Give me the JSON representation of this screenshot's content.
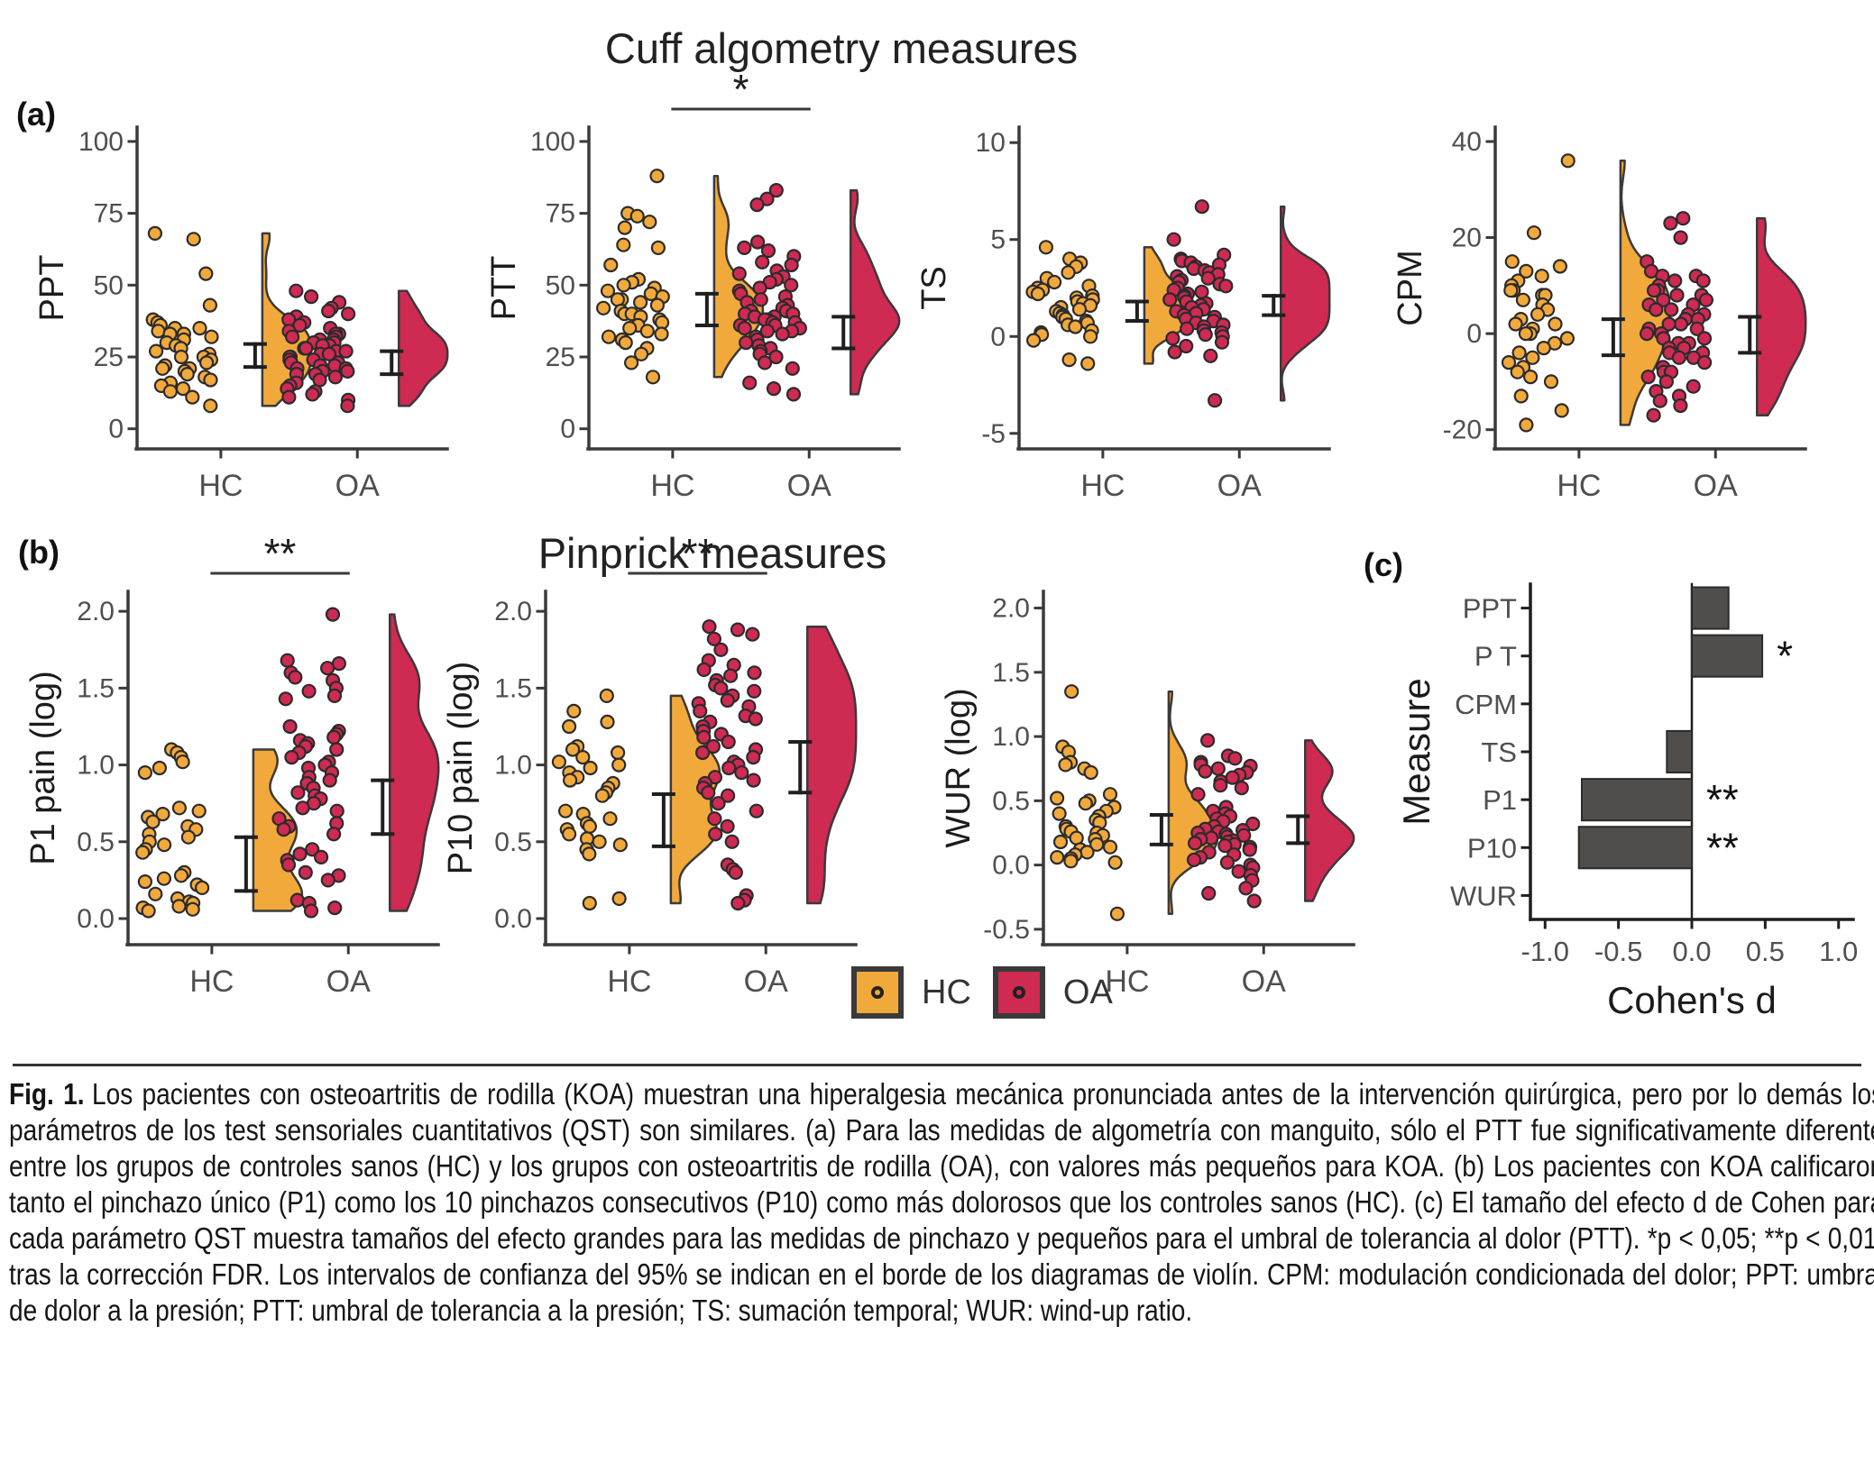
{
  "figure": {
    "titles": {
      "row_a": "Cuff algometry measures",
      "row_b": "Pinprick measures"
    },
    "panel_labels": {
      "a": "(a)",
      "b": "(b)",
      "c": "(c)"
    },
    "legend": [
      {
        "label": "HC",
        "color": "#F2A93B"
      },
      {
        "label": "OA",
        "color": "#CE2A52"
      }
    ]
  },
  "colors": {
    "hc": "#F2A93B",
    "oa": "#CE2A52",
    "bar": "#514D4B",
    "axis": "#3a3a3a",
    "tick_text": "#4f4f4f",
    "label_text": "#1c1c1c"
  },
  "chart_data": [
    {
      "type": "raincloud",
      "id": "ppt",
      "ylabel": "PPT",
      "categories": [
        "HC",
        "OA"
      ],
      "ylim": [
        -7,
        105
      ],
      "yticks": [
        0,
        25,
        50,
        75,
        100
      ],
      "ytick_labels": [
        "0",
        "25",
        "50",
        "75",
        "100"
      ],
      "sig": "",
      "groups": [
        {
          "name": "HC",
          "color": "#F2A93B",
          "ci": [
            21.5,
            29.5
          ],
          "points": [
            68,
            66,
            54,
            43,
            38,
            37,
            36,
            35,
            35,
            34,
            33,
            33,
            32,
            31,
            30,
            29,
            28,
            27,
            26,
            25,
            25,
            24,
            23,
            22,
            21,
            21,
            20,
            19,
            18,
            17,
            16,
            15,
            14,
            13,
            11,
            8
          ]
        },
        {
          "name": "OA",
          "color": "#CE2A52",
          "ci": [
            19,
            27
          ],
          "points": [
            48,
            46,
            44,
            42,
            41,
            40,
            39,
            38,
            37,
            36,
            35,
            34,
            33,
            33,
            32,
            32,
            31,
            31,
            30,
            30,
            29,
            29,
            28,
            28,
            27,
            27,
            26,
            26,
            25,
            25,
            24,
            24,
            23,
            23,
            22,
            22,
            21,
            21,
            20,
            20,
            19,
            19,
            18,
            17,
            16,
            15,
            14,
            13,
            12,
            11,
            10,
            8
          ]
        }
      ]
    },
    {
      "type": "raincloud",
      "id": "ptt",
      "ylabel": "PTT",
      "categories": [
        "HC",
        "OA"
      ],
      "ylim": [
        -7,
        105
      ],
      "yticks": [
        0,
        25,
        50,
        75,
        100
      ],
      "ytick_labels": [
        "0",
        "25",
        "50",
        "75",
        "100"
      ],
      "sig": "*",
      "groups": [
        {
          "name": "HC",
          "color": "#F2A93B",
          "ci": [
            36,
            47
          ],
          "points": [
            88,
            75,
            74,
            72,
            70,
            64,
            63,
            57,
            52,
            51,
            50,
            49,
            48,
            47,
            46,
            45,
            45,
            44,
            43,
            42,
            41,
            40,
            40,
            39,
            38,
            37,
            36,
            35,
            34,
            33,
            32,
            31,
            30,
            28,
            26,
            23,
            18
          ]
        },
        {
          "name": "OA",
          "color": "#CE2A52",
          "ci": [
            28,
            39
          ],
          "points": [
            83,
            80,
            78,
            65,
            63,
            62,
            60,
            58,
            57,
            55,
            54,
            53,
            52,
            51,
            50,
            49,
            48,
            47,
            46,
            45,
            44,
            43,
            42,
            41,
            41,
            40,
            40,
            39,
            39,
            38,
            38,
            37,
            37,
            36,
            36,
            35,
            35,
            34,
            34,
            33,
            32,
            31,
            30,
            29,
            28,
            27,
            26,
            25,
            23,
            21,
            16,
            14,
            12
          ]
        }
      ]
    },
    {
      "type": "raincloud",
      "id": "ts",
      "ylabel": "TS",
      "categories": [
        "HC",
        "OA"
      ],
      "ylim": [
        -5.8,
        10.8
      ],
      "yticks": [
        -5,
        0,
        5,
        10
      ],
      "ytick_labels": [
        "-5",
        "0",
        "5",
        "10"
      ],
      "sig": "",
      "groups": [
        {
          "name": "HC",
          "color": "#F2A93B",
          "ci": [
            0.8,
            1.8
          ],
          "points": [
            4.6,
            4.0,
            3.8,
            3.6,
            3.3,
            3.0,
            2.8,
            2.6,
            2.5,
            2.4,
            2.3,
            2.2,
            2.1,
            2.0,
            1.9,
            1.8,
            1.7,
            1.6,
            1.5,
            1.4,
            1.3,
            1.2,
            1.1,
            1.0,
            0.9,
            0.8,
            0.7,
            0.6,
            0.5,
            0.3,
            0.2,
            0.1,
            0.0,
            -0.2,
            -1.2,
            -1.4
          ]
        },
        {
          "name": "OA",
          "color": "#CE2A52",
          "ci": [
            1.1,
            2.1
          ],
          "points": [
            6.7,
            5.0,
            4.2,
            4.0,
            3.9,
            3.8,
            3.7,
            3.6,
            3.5,
            3.4,
            3.3,
            3.2,
            3.1,
            3.0,
            2.9,
            2.8,
            2.7,
            2.6,
            2.5,
            2.4,
            2.3,
            2.2,
            2.1,
            2.0,
            1.9,
            1.8,
            1.7,
            1.6,
            1.5,
            1.4,
            1.3,
            1.2,
            1.1,
            1.0,
            0.9,
            0.8,
            0.7,
            0.6,
            0.5,
            0.4,
            0.3,
            0.2,
            0.1,
            0.0,
            -0.1,
            -0.3,
            -0.5,
            -0.8,
            -1.0,
            -3.3
          ]
        }
      ]
    },
    {
      "type": "raincloud",
      "id": "cpm",
      "ylabel": "CPM",
      "categories": [
        "HC",
        "OA"
      ],
      "ylim": [
        -24,
        43
      ],
      "yticks": [
        -20,
        0,
        20,
        40
      ],
      "ytick_labels": [
        "-20",
        "0",
        "20",
        "40"
      ],
      "sig": "",
      "groups": [
        {
          "name": "HC",
          "color": "#F2A93B",
          "ci": [
            -4.5,
            3
          ],
          "points": [
            36,
            21,
            15,
            14,
            13,
            12,
            11,
            10,
            9,
            9,
            8,
            8,
            7,
            6,
            5,
            4,
            3,
            2,
            2,
            1,
            0,
            0,
            -1,
            -2,
            -3,
            -4,
            -5,
            -6,
            -7,
            -8,
            -9,
            -10,
            -13,
            -16,
            -19
          ]
        },
        {
          "name": "OA",
          "color": "#CE2A52",
          "ci": [
            -4,
            3.5
          ],
          "points": [
            24,
            23,
            20,
            15,
            13,
            12,
            12,
            11,
            11,
            10,
            9,
            9,
            8,
            8,
            7,
            7,
            6,
            6,
            5,
            5,
            4,
            4,
            3,
            3,
            2,
            2,
            1,
            1,
            0,
            0,
            -1,
            -1,
            -2,
            -2,
            -3,
            -3,
            -4,
            -4,
            -5,
            -5,
            -6,
            -7,
            -8,
            -8,
            -9,
            -10,
            -11,
            -12,
            -13,
            -14,
            -15,
            -17
          ]
        }
      ]
    },
    {
      "type": "raincloud",
      "id": "p1",
      "ylabel": "P1 pain (log)",
      "categories": [
        "HC",
        "OA"
      ],
      "ylim": [
        -0.17,
        2.13
      ],
      "yticks": [
        0,
        0.5,
        1,
        1.5,
        2
      ],
      "ytick_labels": [
        "0.0",
        "0.5",
        "1.0",
        "1.5",
        "2.0"
      ],
      "sig": "**",
      "groups": [
        {
          "name": "HC",
          "color": "#F2A93B",
          "ci": [
            0.18,
            0.53
          ],
          "points": [
            1.1,
            1.08,
            1.05,
            1.02,
            0.98,
            0.95,
            0.72,
            0.7,
            0.68,
            0.66,
            0.63,
            0.6,
            0.58,
            0.55,
            0.53,
            0.5,
            0.48,
            0.45,
            0.43,
            0.3,
            0.28,
            0.26,
            0.24,
            0.22,
            0.2,
            0.16,
            0.13,
            0.11,
            0.1,
            0.08,
            0.07,
            0.06,
            0.05
          ]
        },
        {
          "name": "OA",
          "color": "#CE2A52",
          "ci": [
            0.55,
            0.9
          ],
          "points": [
            1.98,
            1.68,
            1.66,
            1.63,
            1.6,
            1.57,
            1.55,
            1.5,
            1.48,
            1.45,
            1.43,
            1.25,
            1.22,
            1.2,
            1.18,
            1.16,
            1.14,
            1.12,
            1.1,
            1.08,
            1.05,
            1.02,
            1.0,
            0.98,
            0.95,
            0.92,
            0.9,
            0.88,
            0.85,
            0.82,
            0.8,
            0.78,
            0.75,
            0.72,
            0.7,
            0.65,
            0.62,
            0.6,
            0.58,
            0.55,
            0.45,
            0.42,
            0.4,
            0.38,
            0.35,
            0.3,
            0.28,
            0.25,
            0.12,
            0.1,
            0.07,
            0.05
          ]
        }
      ]
    },
    {
      "type": "raincloud",
      "id": "p10",
      "ylabel": "P10 pain (log)",
      "categories": [
        "HC",
        "OA"
      ],
      "ylim": [
        -0.17,
        2.13
      ],
      "yticks": [
        0,
        0.5,
        1,
        1.5,
        2
      ],
      "ytick_labels": [
        "0.0",
        "0.5",
        "1.0",
        "1.5",
        "2.0"
      ],
      "sig": "**",
      "groups": [
        {
          "name": "HC",
          "color": "#F2A93B",
          "ci": [
            0.47,
            0.81
          ],
          "points": [
            1.45,
            1.35,
            1.28,
            1.25,
            1.12,
            1.1,
            1.08,
            1.05,
            1.02,
            1.0,
            0.98,
            0.95,
            0.92,
            0.9,
            0.88,
            0.85,
            0.82,
            0.8,
            0.7,
            0.68,
            0.65,
            0.62,
            0.6,
            0.58,
            0.55,
            0.52,
            0.5,
            0.48,
            0.45,
            0.42,
            0.13,
            0.1
          ]
        },
        {
          "name": "OA",
          "color": "#CE2A52",
          "ci": [
            0.82,
            1.15
          ],
          "points": [
            1.9,
            1.88,
            1.85,
            1.82,
            1.75,
            1.68,
            1.65,
            1.62,
            1.6,
            1.58,
            1.55,
            1.52,
            1.5,
            1.48,
            1.45,
            1.42,
            1.4,
            1.38,
            1.35,
            1.32,
            1.3,
            1.28,
            1.25,
            1.22,
            1.2,
            1.18,
            1.15,
            1.12,
            1.1,
            1.08,
            1.05,
            1.02,
            1.0,
            0.98,
            0.95,
            0.92,
            0.9,
            0.88,
            0.85,
            0.82,
            0.8,
            0.75,
            0.7,
            0.65,
            0.6,
            0.55,
            0.5,
            0.35,
            0.32,
            0.3,
            0.15,
            0.12,
            0.1
          ]
        }
      ]
    },
    {
      "type": "raincloud",
      "id": "wur",
      "ylabel": "WUR (log)",
      "categories": [
        "HC",
        "OA"
      ],
      "ylim": [
        -0.62,
        2.13
      ],
      "yticks": [
        -0.5,
        0,
        0.5,
        1,
        1.5,
        2
      ],
      "ytick_labels": [
        "-0.5",
        "0.0",
        "0.5",
        "1.0",
        "1.5",
        "2.0"
      ],
      "sig": "",
      "groups": [
        {
          "name": "HC",
          "color": "#F2A93B",
          "ci": [
            0.16,
            0.39
          ],
          "points": [
            1.35,
            0.92,
            0.88,
            0.8,
            0.78,
            0.75,
            0.72,
            0.55,
            0.52,
            0.5,
            0.48,
            0.45,
            0.42,
            0.4,
            0.38,
            0.35,
            0.33,
            0.3,
            0.28,
            0.26,
            0.25,
            0.23,
            0.21,
            0.2,
            0.18,
            0.16,
            0.14,
            0.12,
            0.1,
            0.08,
            0.06,
            0.05,
            0.03,
            0.02,
            -0.38
          ]
        },
        {
          "name": "OA",
          "color": "#CE2A52",
          "ci": [
            0.17,
            0.38
          ],
          "points": [
            0.97,
            0.85,
            0.83,
            0.8,
            0.78,
            0.77,
            0.75,
            0.73,
            0.72,
            0.7,
            0.68,
            0.65,
            0.62,
            0.6,
            0.55,
            0.45,
            0.42,
            0.4,
            0.38,
            0.36,
            0.34,
            0.32,
            0.3,
            0.28,
            0.27,
            0.26,
            0.25,
            0.24,
            0.23,
            0.22,
            0.21,
            0.2,
            0.19,
            0.18,
            0.17,
            0.16,
            0.15,
            0.14,
            0.12,
            0.1,
            0.08,
            0.06,
            0.04,
            0.02,
            0.0,
            -0.02,
            -0.05,
            -0.08,
            -0.12,
            -0.18,
            -0.22,
            -0.28
          ]
        }
      ]
    },
    {
      "type": "bar",
      "id": "cohens_d",
      "orientation": "horizontal",
      "xlabel": "Cohen's d",
      "ylabel": "Measure",
      "categories": [
        "PPT",
        "P T",
        "CPM",
        "TS",
        "P1",
        "P10",
        "WUR"
      ],
      "values": [
        0.25,
        0.48,
        0.0,
        -0.17,
        -0.75,
        -0.77,
        0.0
      ],
      "sig": [
        "",
        "*",
        "",
        "",
        "**",
        "**",
        ""
      ],
      "xticks": [
        -1,
        -0.5,
        0,
        0.5,
        1
      ],
      "xtick_labels": [
        "-1.0",
        "-0.5",
        "0.0",
        "0.5",
        "1.0"
      ],
      "xlim": [
        -1.1,
        1.1
      ],
      "bar_color": "#514D4B"
    }
  ],
  "caption": {
    "label": "Fig. 1.",
    "text": "Los pacientes con osteoartritis de rodilla (KOA) muestran una hiperalgesia mecánica pronunciada antes de la intervención quirúrgica, pero por lo demás los parámetros de los test sensoriales cuantitativos (QST) son similares. (a) Para las medidas de algometría con manguito, sólo el PTT fue significativamente diferente entre los grupos de controles sanos (HC) y los grupos con osteoartritis de rodilla (OA), con valores más pequeños para KOA. (b) Los pacientes con KOA calificaron tanto el pinchazo único (P1) como los 10 pinchazos consecutivos (P10) como más dolorosos que los controles sanos (HC). (c) El tamaño del efecto d de Cohen para cada parámetro QST muestra tamaños del efecto grandes para las medidas de pinchazo y pequeños para el umbral de tolerancia al dolor (PTT). *p < 0,05; **p < 0,01, tras la corrección FDR. Los intervalos de confianza del 95% se indican en el borde de los diagramas de violín. CPM: modulación condicionada del dolor; PPT: umbral de dolor a la presión; PTT: umbral de tolerancia a la presión; TS: sumación temporal; WUR: wind-up ratio."
  }
}
